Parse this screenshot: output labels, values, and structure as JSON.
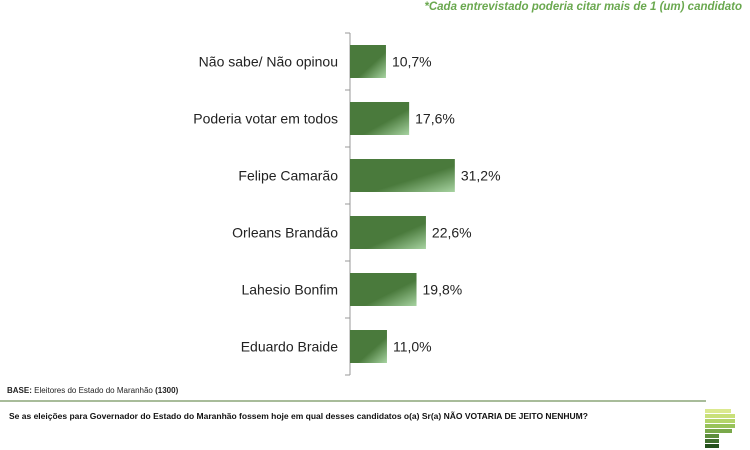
{
  "note": "*Cada entrevistado poderia citar mais de 1 (um) candidato",
  "base": {
    "label": "BASE:",
    "text": "Eleitores do Estado do Maranhão",
    "count": "(1300)"
  },
  "question": "Se as eleições para Governador do Estado do Maranhão fossem hoje em qual desses candidatos o(a) Sr(a) NÃO VOTARIA DE JEITO NENHUM?",
  "chart_data": {
    "type": "bar",
    "orientation": "horizontal",
    "categories": [
      "Não sabe/ Não opinou",
      "Poderia votar em todos",
      "Felipe Camarão",
      "Orleans Brandão",
      "Lahesio Bonfim",
      "Eduardo Braide"
    ],
    "values": [
      10.7,
      17.6,
      31.2,
      22.6,
      19.8,
      11.0
    ],
    "data_labels": [
      "10,7%",
      "17,6%",
      "31,2%",
      "22,6%",
      "19,8%",
      "11,0%"
    ],
    "unit": "%",
    "xlim": [
      0,
      100
    ],
    "grid": false,
    "bar_color": "#4a7a3c",
    "bar_highlight": "#a7d3a1"
  }
}
